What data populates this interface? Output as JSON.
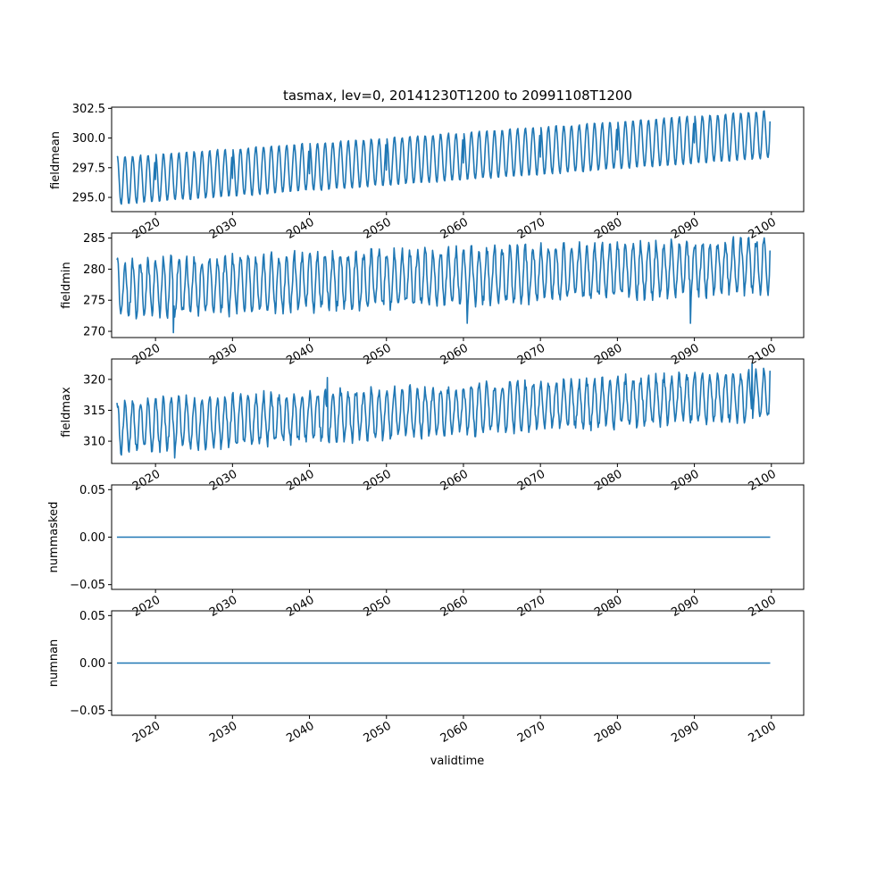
{
  "chart_data": [
    {
      "type": "line",
      "title": "tasmax, lev=0, 20141230T1200 to 20991108T1200",
      "ylabel": "fieldmean",
      "xlabel": "",
      "xlim": [
        2014.3,
        2104.2
      ],
      "ylim": [
        293.8,
        302.6
      ],
      "yticks": [
        "295.0",
        "297.5",
        "300.0",
        "302.5"
      ],
      "yticks_values": [
        295.0,
        297.5,
        300.0,
        302.5
      ],
      "xticks": [
        "2020",
        "2030",
        "2040",
        "2050",
        "2060",
        "2070",
        "2080",
        "2090",
        "2100"
      ],
      "xticks_values": [
        2020,
        2030,
        2040,
        2050,
        2060,
        2070,
        2080,
        2090,
        2100
      ],
      "grid": false,
      "color": "#1f77b4",
      "series": [
        {
          "x_start": 2014.99,
          "x_end": 2099.85,
          "seasonal_cycle": true,
          "low_start": 294.4,
          "low_end": 298.3,
          "high_start": 298.4,
          "high_end": 302.3,
          "x": [
            2015.0,
            2020.0,
            2030.0,
            2040.0,
            2050.0,
            2060.0,
            2070.0,
            2080.0,
            2090.0,
            2099.8
          ],
          "values": [
            298.4,
            296.5,
            296.6,
            297.0,
            297.3,
            297.9,
            298.4,
            299.0,
            299.6,
            301.4
          ]
        }
      ]
    },
    {
      "type": "line",
      "title": "",
      "ylabel": "fieldmin",
      "xlabel": "",
      "xlim": [
        2014.3,
        2104.2
      ],
      "ylim": [
        269.0,
        285.8
      ],
      "yticks": [
        "270",
        "275",
        "280",
        "285"
      ],
      "yticks_values": [
        270,
        275,
        280,
        285
      ],
      "xticks": [
        "2020",
        "2030",
        "2040",
        "2050",
        "2060",
        "2070",
        "2080",
        "2090",
        "2100"
      ],
      "xticks_values": [
        2020,
        2030,
        2040,
        2050,
        2060,
        2070,
        2080,
        2090,
        2100
      ],
      "grid": false,
      "color": "#1f77b4",
      "series": [
        {
          "x_start": 2014.99,
          "x_end": 2099.85,
          "seasonal_cycle": true,
          "low_start": 272.5,
          "low_end": 276.5,
          "high_start": 281.3,
          "high_end": 284.6,
          "x": [
            2015.0,
            2022.3,
            2060.5,
            2089.5,
            2099.8
          ],
          "values": [
            281.5,
            269.8,
            271.3,
            271.3,
            283.0
          ]
        }
      ]
    },
    {
      "type": "line",
      "title": "",
      "ylabel": "fieldmax",
      "xlabel": "",
      "xlim": [
        2014.3,
        2104.2
      ],
      "ylim": [
        306.4,
        323.3
      ],
      "yticks": [
        "310",
        "315",
        "320"
      ],
      "yticks_values": [
        310,
        315,
        320
      ],
      "xticks": [
        "2020",
        "2030",
        "2040",
        "2050",
        "2060",
        "2070",
        "2080",
        "2090",
        "2100"
      ],
      "xticks_values": [
        2020,
        2030,
        2040,
        2050,
        2060,
        2070,
        2080,
        2090,
        2100
      ],
      "grid": false,
      "color": "#1f77b4",
      "series": [
        {
          "x_start": 2014.99,
          "x_end": 2099.85,
          "seasonal_cycle": true,
          "low_start": 308.5,
          "low_end": 313.8,
          "high_start": 316.3,
          "high_end": 321.2,
          "x": [
            2015.0,
            2022.5,
            2042.3,
            2097.5,
            2099.8
          ],
          "values": [
            316.2,
            307.3,
            320.3,
            322.5,
            321.4
          ]
        }
      ]
    },
    {
      "type": "line",
      "title": "",
      "ylabel": "nummasked",
      "xlabel": "",
      "xlim": [
        2014.3,
        2104.2
      ],
      "ylim": [
        -0.055,
        0.055
      ],
      "yticks": [
        "−0.05",
        "0.00",
        "0.05"
      ],
      "yticks_values": [
        -0.05,
        0.0,
        0.05
      ],
      "xticks": [
        "2020",
        "2030",
        "2040",
        "2050",
        "2060",
        "2070",
        "2080",
        "2090",
        "2100"
      ],
      "xticks_values": [
        2020,
        2030,
        2040,
        2050,
        2060,
        2070,
        2080,
        2090,
        2100
      ],
      "grid": false,
      "color": "#1f77b4",
      "series": [
        {
          "x": [
            2014.99,
            2099.85
          ],
          "values": [
            0.0,
            0.0
          ]
        }
      ]
    },
    {
      "type": "line",
      "title": "",
      "ylabel": "numnan",
      "xlabel": "validtime",
      "xlim": [
        2014.3,
        2104.2
      ],
      "ylim": [
        -0.055,
        0.055
      ],
      "yticks": [
        "−0.05",
        "0.00",
        "0.05"
      ],
      "yticks_values": [
        -0.05,
        0.0,
        0.05
      ],
      "xticks": [
        "2020",
        "2030",
        "2040",
        "2050",
        "2060",
        "2070",
        "2080",
        "2090",
        "2100"
      ],
      "xticks_values": [
        2020,
        2030,
        2040,
        2050,
        2060,
        2070,
        2080,
        2090,
        2100
      ],
      "grid": false,
      "color": "#1f77b4",
      "series": [
        {
          "x": [
            2014.99,
            2099.85
          ],
          "values": [
            0.0,
            0.0
          ]
        }
      ]
    }
  ]
}
